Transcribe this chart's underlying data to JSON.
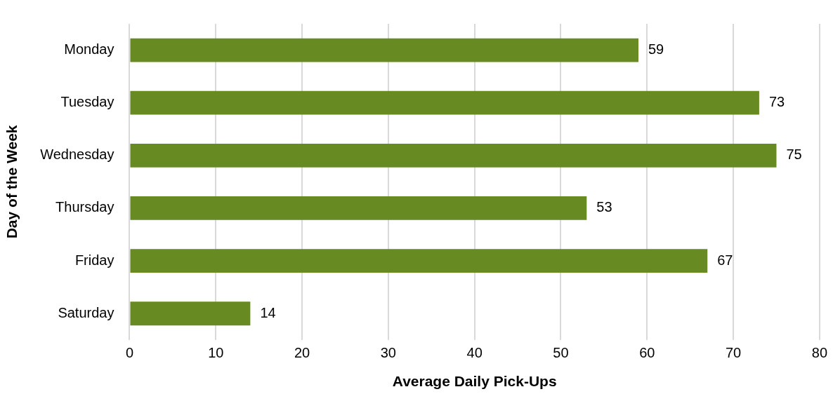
{
  "chart_data": {
    "type": "bar",
    "orientation": "horizontal",
    "xlabel": "Average Daily Pick-Ups",
    "ylabel": "Day of the Week",
    "categories": [
      "Monday",
      "Tuesday",
      "Wednesday",
      "Thursday",
      "Friday",
      "Saturday"
    ],
    "values": [
      59,
      73,
      75,
      53,
      67,
      14
    ],
    "color": "#678a22",
    "xlim": [
      0,
      80
    ],
    "xticks": [
      0,
      10,
      20,
      30,
      40,
      50,
      60,
      70,
      80
    ],
    "grid": "x",
    "data_labels": true,
    "legend": false
  }
}
